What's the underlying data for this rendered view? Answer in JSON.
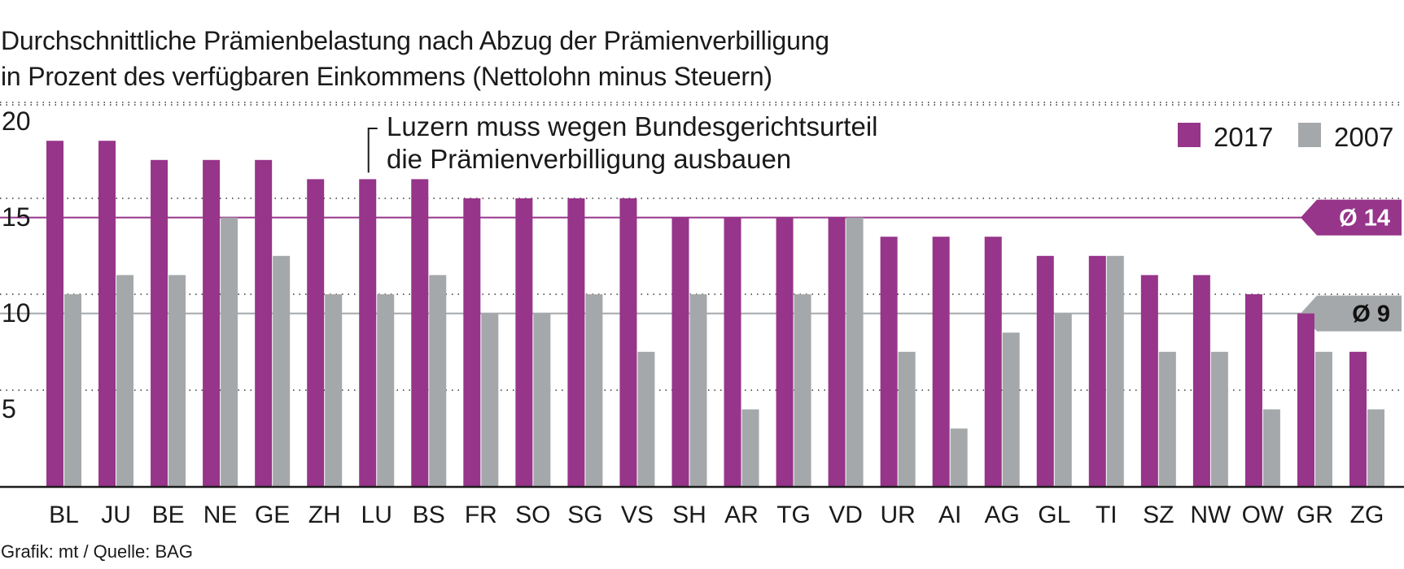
{
  "title_lines": [
    "Durchschnittliche Prämienbelastung nach Abzug der Prämienverbilligung",
    "in Prozent des verfügbaren Einkommens  (Nettolohn minus Steuern)"
  ],
  "source": "Grafik: mt / Quelle: BAG",
  "chart_data": {
    "type": "bar",
    "title": "Durchschnittliche Prämienbelastung nach Abzug der Prämienverbilligung in Prozent des verfügbaren Einkommens  (Nettolohn minus Steuern)",
    "xlabel": "",
    "ylabel": "",
    "ylim": [
      0,
      20
    ],
    "yticks": [
      5,
      10,
      15,
      20
    ],
    "grid": true,
    "legend_position": "top-right",
    "categories": [
      "BL",
      "JU",
      "BE",
      "NE",
      "GE",
      "ZH",
      "LU",
      "BS",
      "FR",
      "SO",
      "SG",
      "VS",
      "SH",
      "AR",
      "TG",
      "VD",
      "UR",
      "AI",
      "AG",
      "GL",
      "TI",
      "SZ",
      "NW",
      "OW",
      "GR",
      "ZG"
    ],
    "series": [
      {
        "name": "2017",
        "color": "#96358a",
        "values": [
          18,
          18,
          17,
          17,
          17,
          16,
          16,
          16,
          15,
          15,
          15,
          15,
          14,
          14,
          14,
          14,
          13,
          13,
          13,
          12,
          12,
          11,
          11,
          10,
          9,
          7
        ]
      },
      {
        "name": "2007",
        "color": "#a5a8aa",
        "values": [
          10,
          11,
          11,
          14,
          12,
          10,
          10,
          11,
          9,
          9,
          10,
          7,
          10,
          4,
          10,
          14,
          7,
          3,
          8,
          9,
          12,
          7,
          7,
          4,
          7,
          4
        ]
      }
    ],
    "reference_lines": [
      {
        "label": "Ø 14",
        "value": 14,
        "series": "2017",
        "color": "#96358a"
      },
      {
        "label": "Ø 9",
        "value": 9,
        "series": "2007",
        "color": "#a5a8aa"
      }
    ],
    "annotation": {
      "category": "LU",
      "lines": [
        "Luzern muss wegen Bundesgerichtsurteil",
        "die Prämienverbilligung ausbauen"
      ]
    }
  }
}
